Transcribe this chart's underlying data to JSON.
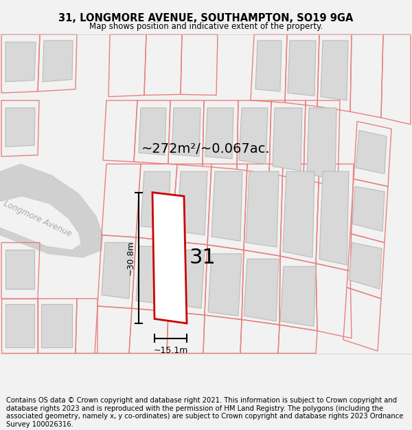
{
  "title": "31, LONGMORE AVENUE, SOUTHAMPTON, SO19 9GA",
  "subtitle": "Map shows position and indicative extent of the property.",
  "area_label": "~272m²/~0.067ac.",
  "number_label": "31",
  "width_label": "~15.1m",
  "height_label": "~30.8m",
  "street_label": "Longmore Avenue",
  "footer_text": "Contains OS data © Crown copyright and database right 2021. This information is subject to Crown copyright and database rights 2023 and is reproduced with the permission of HM Land Registry. The polygons (including the associated geometry, namely x, y co-ordinates) are subject to Crown copyright and database rights 2023 Ordnance Survey 100026316.",
  "bg_color": "#f2f2f2",
  "map_bg": "#ffffff",
  "plot_color": "#cc0000",
  "building_fill": "#d8d8d8",
  "building_outline": "#bbbbbb",
  "pink_line_color": "#e88080",
  "road_fill": "#d0d0d0",
  "title_fontsize": 10.5,
  "subtitle_fontsize": 8.5,
  "footer_fontsize": 7.2
}
